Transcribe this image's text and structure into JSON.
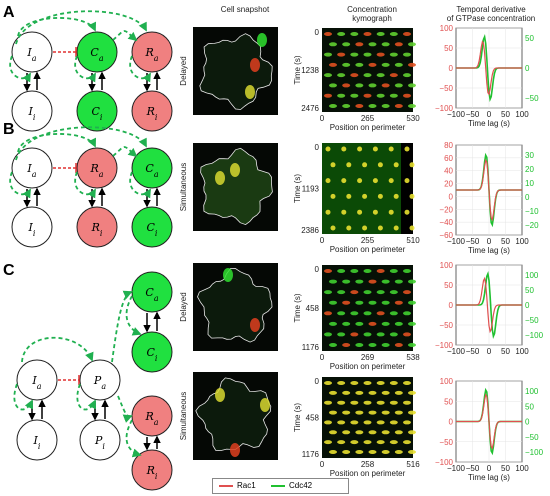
{
  "headers": {
    "snapshot": "Cell snapshot",
    "kymo": "Concentration\nkymograph",
    "deriv": "Temporal derivative\nof GTPase concentration"
  },
  "legend": {
    "items": [
      "Rac1",
      "Cdc42"
    ]
  },
  "colors": {
    "red_series": "#e05050",
    "green_series": "#20c030",
    "green_node": "#20e040",
    "red_node": "#f08080",
    "dashed": "#20b050"
  },
  "panels": [
    {
      "letter": "A",
      "network": {
        "top": [
          "I_a",
          "C_a",
          "R_a"
        ],
        "bottom": [
          "I_i",
          "C_i",
          "R_i"
        ],
        "top_colors": [
          "white",
          "green",
          "red"
        ]
      },
      "rows": [
        {
          "condition": "Delayed",
          "kymo": {
            "ylabel": "Time (s)",
            "yticks": [
              "0",
              "1238",
              "2476"
            ],
            "xticks": [
              "0",
              "265",
              "530"
            ],
            "xlabel": "Position on perimeter"
          },
          "deriv": {
            "xticks": [
              "−100",
              "−50",
              "0",
              "50",
              "100"
            ],
            "xlabel": "Time lag (s)",
            "left_ticks": [
              "100",
              "50",
              "0",
              "−50",
              "−100"
            ],
            "right_ticks": [
              "50",
              "0",
              "−50"
            ],
            "red_peak_lag": -10,
            "green_peak_lag": -5
          }
        }
      ]
    },
    {
      "letter": "B",
      "network": {
        "top": [
          "I_a",
          "R_a",
          "C_a"
        ],
        "bottom": [
          "I_i",
          "R_i",
          "C_i"
        ],
        "top_colors": [
          "white",
          "red",
          "green"
        ]
      },
      "rows": [
        {
          "condition": "Simultaneous",
          "kymo": {
            "ylabel": "Time (s)",
            "yticks": [
              "0",
              "1193",
              "2386"
            ],
            "xticks": [
              "0",
              "255",
              "510"
            ],
            "xlabel": "Position on perimeter"
          },
          "deriv": {
            "xticks": [
              "−100",
              "−50",
              "0",
              "50",
              "100"
            ],
            "xlabel": "Time lag (s)",
            "left_ticks": [
              "80",
              "60",
              "40",
              "20",
              "0",
              "−20",
              "−40",
              "−60"
            ],
            "right_ticks": [
              "30",
              "20",
              "10",
              "0",
              "−10",
              "−20"
            ],
            "red_peak_lag": 0,
            "green_peak_lag": 0
          }
        }
      ]
    },
    {
      "letter": "C",
      "network": {
        "left": [
          "I_a",
          "I_i"
        ],
        "mid": [
          "P_a",
          "P_i"
        ],
        "right_top": [
          "C_a",
          "C_i"
        ],
        "right_bottom": [
          "R_a",
          "R_i"
        ]
      },
      "rows": [
        {
          "condition": "Delayed",
          "kymo": {
            "ylabel": "Time (s)",
            "yticks": [
              "0",
              "458",
              "1176"
            ],
            "xticks": [
              "0",
              "269",
              "538"
            ],
            "xlabel": "Position on perimeter"
          },
          "deriv": {
            "xticks": [
              "−100",
              "−50",
              "0",
              "50",
              "100"
            ],
            "xlabel": "",
            "left_ticks": [
              "100",
              "50",
              "0",
              "−50",
              "−100"
            ],
            "right_ticks": [
              "100",
              "50",
              "0",
              "−50",
              "−100"
            ],
            "red_peak_lag": -5,
            "green_peak_lag": 5
          }
        },
        {
          "condition": "Simultaneous",
          "kymo": {
            "ylabel": "Time (s)",
            "yticks": [
              "0",
              "458",
              "1176"
            ],
            "xticks": [
              "0",
              "258",
              "516"
            ],
            "xlabel": "Position on perimeter"
          },
          "deriv": {
            "xticks": [
              "−100",
              "−50",
              "0",
              "50",
              "100"
            ],
            "xlabel": "Time lag (s)",
            "left_ticks": [
              "100",
              "50",
              "0",
              "−50",
              "−100"
            ],
            "right_ticks": [
              "100",
              "50",
              "0",
              "−50",
              "−100"
            ],
            "red_peak_lag": 0,
            "green_peak_lag": 0
          }
        }
      ]
    }
  ]
}
